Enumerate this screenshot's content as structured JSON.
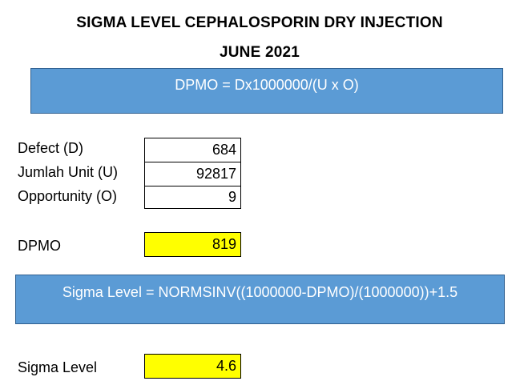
{
  "header": {
    "title": "SIGMA LEVEL CEPHALOSPORIN DRY INJECTION",
    "subtitle": "JUNE 2021"
  },
  "formulas": {
    "dpmo": "DPMO = Dx1000000/(U x O)",
    "sigma": "Sigma Level = NORMSINV((1000000-DPMO)/(1000000))+1.5"
  },
  "inputs": [
    {
      "label": "Defect (D)",
      "value": "684"
    },
    {
      "label": "Jumlah Unit (U)",
      "value": "92817"
    },
    {
      "label": "Opportunity (O)",
      "value": "9"
    }
  ],
  "results": {
    "dpmo_label": "DPMO",
    "dpmo_value": "819",
    "sigma_label": "Sigma Level",
    "sigma_value": "4.6"
  },
  "colors": {
    "formula_box": "#5b9bd5",
    "highlight": "#ffff00"
  }
}
